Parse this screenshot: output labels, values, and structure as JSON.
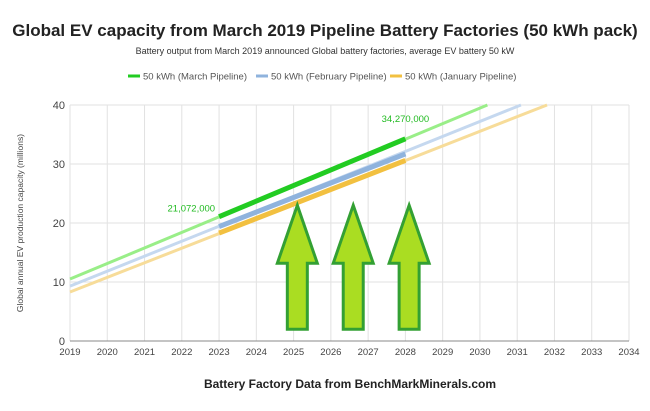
{
  "chart_data": {
    "type": "line",
    "title": "Global EV capacity from March 2019 Pipeline Battery Factories (50 kWh pack)",
    "subtitle": "Battery output from March 2019 announced Global battery factories, average EV battery 50 kW",
    "xlabel": "Battery Factory Data from BenchMarkMinerals.com",
    "ylabel": "Global annual EV production capacity (millions)",
    "xlim": [
      2019,
      2034
    ],
    "ylim": [
      0,
      40
    ],
    "x_ticks": [
      "2019",
      "2020",
      "2021",
      "2022",
      "2023",
      "2024",
      "2025",
      "2026",
      "2027",
      "2028",
      "2029",
      "2030",
      "2031",
      "2032",
      "2033",
      "2034"
    ],
    "y_ticks": [
      "0",
      "10",
      "20",
      "30",
      "40"
    ],
    "grid": true,
    "legend_position": "top-center",
    "series": [
      {
        "name": "50 kWh (March Pipeline)",
        "color": "#22cc22",
        "trend_color": "#99ee88",
        "trend": {
          "x": [
            2019,
            2030.2
          ],
          "y": [
            10.5,
            40
          ]
        },
        "x": [
          2023,
          2028
        ],
        "y": [
          21.072,
          34.27
        ]
      },
      {
        "name": "50 kWh (February Pipeline)",
        "color": "#8fb3dd",
        "trend_color": "#c5d8ef",
        "trend": {
          "x": [
            2019,
            2031.1
          ],
          "y": [
            9.3,
            40
          ]
        },
        "x": [
          2023,
          2028
        ],
        "y": [
          19.4,
          31.7
        ]
      },
      {
        "name": "50 kWh (January Pipeline)",
        "color": "#f2c040",
        "trend_color": "#f7dc99",
        "trend": {
          "x": [
            2019,
            2031.8
          ],
          "y": [
            8.3,
            40
          ]
        },
        "x": [
          2023,
          2028
        ],
        "y": [
          18.3,
          30.6
        ]
      }
    ],
    "annotations": [
      {
        "text": "21,072,000",
        "x": 2023,
        "y": 21.072
      },
      {
        "text": "34,270,000",
        "x": 2028,
        "y": 34.27
      }
    ],
    "arrows": [
      {
        "x": 2025.1,
        "y_base": 2,
        "y_tip": 23
      },
      {
        "x": 2026.6,
        "y_base": 2,
        "y_tip": 23
      },
      {
        "x": 2028.1,
        "y_base": 2,
        "y_tip": 23
      }
    ],
    "arrow_fill": "#aadd22",
    "arrow_stroke": "#33a033"
  }
}
